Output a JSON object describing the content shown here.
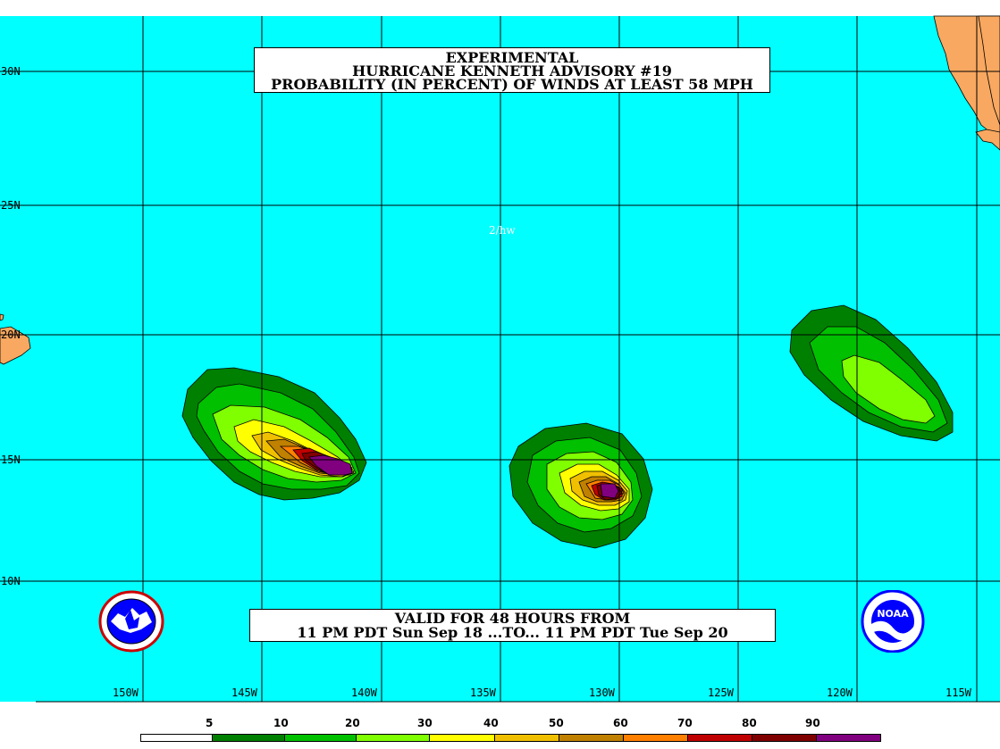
{
  "title": {
    "line1": "EXPERIMENTAL",
    "line2": "HURRICANE KENNETH ADVISORY #19",
    "line3": "PROBABILITY (IN PERCENT) OF WINDS AT LEAST 58 MPH"
  },
  "validity": {
    "line1": "VALID FOR 48 HOURS FROM",
    "line2": "11 PM PDT Sun Sep 18 ...TO... 11 PM PDT Tue Sep 20"
  },
  "initials": "2/hw",
  "latitudes": [
    "30N",
    "25N",
    "20N",
    "15N",
    "10N"
  ],
  "longitudes": [
    "150W",
    "145W",
    "140W",
    "135W",
    "130W",
    "125W",
    "120W",
    "115W"
  ],
  "legend": {
    "labels": [
      "5",
      "10",
      "20",
      "30",
      "40",
      "50",
      "60",
      "70",
      "80",
      "90"
    ],
    "colors": [
      "#ffffff",
      "#008000",
      "#00c000",
      "#80ff00",
      "#ffff00",
      "#f0c000",
      "#c08000",
      "#ff8000",
      "#c00000",
      "#800000",
      "#800080"
    ]
  },
  "colors": {
    "ocean": "#00ffff",
    "land": "#f8a860",
    "grid": "#000000"
  },
  "logos": {
    "left": "nws-logo",
    "right": "noaa-logo",
    "noaa_text": "NOAA"
  }
}
